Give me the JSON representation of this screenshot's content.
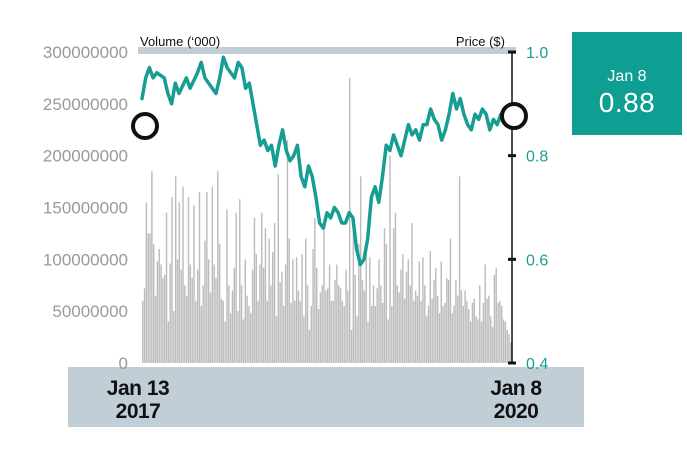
{
  "chart_data": {
    "type": "bar+line",
    "title": "",
    "left_axis": {
      "title": "Volume (‘000)",
      "ticks": [
        0,
        50000000,
        100000000,
        150000000,
        200000000,
        250000000,
        300000000
      ],
      "tick_labels": [
        "0",
        "50000000",
        "100000000",
        "150000000",
        "200000000",
        "250000000",
        "300000000"
      ],
      "range": [
        0,
        300000000
      ]
    },
    "right_axis": {
      "title": "Price ($)",
      "ticks": [
        0.4,
        0.6,
        0.8,
        1.0
      ],
      "tick_labels": [
        "0.4",
        "0.6",
        "0.8",
        "1.0"
      ],
      "range": [
        0.4,
        1.0
      ]
    },
    "x_range": [
      "Jan 13 2017",
      "Jan 8 2020"
    ],
    "start_label": {
      "month_day": "Jan 13",
      "year": "2017"
    },
    "end_label": {
      "month_day": "Jan 8",
      "year": "2020"
    },
    "series": [
      {
        "name": "Volume",
        "kind": "bar",
        "color": "#bcbcbc",
        "values": [
          60000000,
          72000000,
          155000000,
          125000000,
          125000000,
          185000000,
          115000000,
          65000000,
          98000000,
          110000000,
          95000000,
          82000000,
          85000000,
          145000000,
          40000000,
          96000000,
          160000000,
          50000000,
          180000000,
          100000000,
          155000000,
          90000000,
          170000000,
          75000000,
          65000000,
          160000000,
          95000000,
          82000000,
          152000000,
          60000000,
          90000000,
          165000000,
          55000000,
          75000000,
          118000000,
          165000000,
          100000000,
          68000000,
          170000000,
          95000000,
          82000000,
          185000000,
          115000000,
          62000000,
          60000000,
          40000000,
          148000000,
          75000000,
          48000000,
          70000000,
          92000000,
          145000000,
          50000000,
          158000000,
          75000000,
          42000000,
          100000000,
          65000000,
          55000000,
          48000000,
          90000000,
          140000000,
          105000000,
          60000000,
          95000000,
          145000000,
          92000000,
          130000000,
          60000000,
          120000000,
          75000000,
          107000000,
          135000000,
          45000000,
          182000000,
          78000000,
          88000000,
          55000000,
          95000000,
          215000000,
          120000000,
          58000000,
          100000000,
          60000000,
          102000000,
          70000000,
          60000000,
          105000000,
          45000000,
          120000000,
          75000000,
          32000000,
          55000000,
          110000000,
          140000000,
          92000000,
          52000000,
          68000000,
          75000000,
          128000000,
          70000000,
          72000000,
          95000000,
          60000000,
          60000000,
          80000000,
          95000000,
          75000000,
          72000000,
          60000000,
          55000000,
          90000000,
          70000000,
          275000000,
          32000000,
          128000000,
          85000000,
          45000000,
          115000000,
          180000000,
          80000000,
          70000000,
          108000000,
          40000000,
          102000000,
          55000000,
          75000000,
          55000000,
          72000000,
          100000000,
          75000000,
          58000000,
          130000000,
          115000000,
          42000000,
          200000000,
          55000000,
          130000000,
          145000000,
          75000000,
          68000000,
          90000000,
          105000000,
          62000000,
          88000000,
          100000000,
          75000000,
          135000000,
          60000000,
          70000000,
          65000000,
          98000000,
          60000000,
          102000000,
          75000000,
          45000000,
          55000000,
          108000000,
          62000000,
          80000000,
          92000000,
          65000000,
          48000000,
          98000000,
          55000000,
          58000000,
          82000000,
          80000000,
          120000000,
          48000000,
          55000000,
          80000000,
          65000000,
          180000000,
          70000000,
          55000000,
          70000000,
          60000000,
          52000000,
          40000000,
          58000000,
          62000000,
          45000000,
          42000000,
          75000000,
          40000000,
          58000000,
          95000000,
          62000000,
          65000000,
          45000000,
          35000000,
          85000000,
          92000000,
          58000000,
          60000000,
          55000000,
          42000000,
          40000000,
          32000000,
          28000000,
          20000000
        ]
      },
      {
        "name": "Price",
        "kind": "line",
        "color": "#179e92",
        "points": [
          [
            0.0,
            0.91
          ],
          [
            0.01,
            0.95
          ],
          [
            0.02,
            0.97
          ],
          [
            0.03,
            0.95
          ],
          [
            0.04,
            0.96
          ],
          [
            0.06,
            0.95
          ],
          [
            0.07,
            0.92
          ],
          [
            0.08,
            0.9
          ],
          [
            0.09,
            0.94
          ],
          [
            0.1,
            0.92
          ],
          [
            0.12,
            0.95
          ],
          [
            0.13,
            0.93
          ],
          [
            0.15,
            0.96
          ],
          [
            0.16,
            0.98
          ],
          [
            0.17,
            0.95
          ],
          [
            0.18,
            0.94
          ],
          [
            0.2,
            0.92
          ],
          [
            0.21,
            0.95
          ],
          [
            0.22,
            0.99
          ],
          [
            0.23,
            0.97
          ],
          [
            0.25,
            0.95
          ],
          [
            0.26,
            0.98
          ],
          [
            0.27,
            0.97
          ],
          [
            0.28,
            0.93
          ],
          [
            0.29,
            0.94
          ],
          [
            0.3,
            0.9
          ],
          [
            0.31,
            0.86
          ],
          [
            0.32,
            0.82
          ],
          [
            0.33,
            0.83
          ],
          [
            0.34,
            0.81
          ],
          [
            0.35,
            0.82
          ],
          [
            0.36,
            0.78
          ],
          [
            0.37,
            0.82
          ],
          [
            0.38,
            0.85
          ],
          [
            0.39,
            0.81
          ],
          [
            0.4,
            0.79
          ],
          [
            0.41,
            0.8
          ],
          [
            0.42,
            0.82
          ],
          [
            0.43,
            0.76
          ],
          [
            0.44,
            0.74
          ],
          [
            0.45,
            0.78
          ],
          [
            0.46,
            0.76
          ],
          [
            0.47,
            0.72
          ],
          [
            0.48,
            0.67
          ],
          [
            0.49,
            0.66
          ],
          [
            0.5,
            0.69
          ],
          [
            0.51,
            0.68
          ],
          [
            0.52,
            0.7
          ],
          [
            0.53,
            0.69
          ],
          [
            0.54,
            0.67
          ],
          [
            0.55,
            0.67
          ],
          [
            0.56,
            0.69
          ],
          [
            0.57,
            0.68
          ],
          [
            0.58,
            0.62
          ],
          [
            0.59,
            0.59
          ],
          [
            0.6,
            0.6
          ],
          [
            0.61,
            0.64
          ],
          [
            0.62,
            0.72
          ],
          [
            0.63,
            0.74
          ],
          [
            0.64,
            0.71
          ],
          [
            0.65,
            0.76
          ],
          [
            0.66,
            0.82
          ],
          [
            0.67,
            0.81
          ],
          [
            0.68,
            0.84
          ],
          [
            0.69,
            0.82
          ],
          [
            0.7,
            0.8
          ],
          [
            0.71,
            0.83
          ],
          [
            0.72,
            0.86
          ],
          [
            0.73,
            0.84
          ],
          [
            0.74,
            0.85
          ],
          [
            0.75,
            0.83
          ],
          [
            0.76,
            0.86
          ],
          [
            0.77,
            0.86
          ],
          [
            0.78,
            0.89
          ],
          [
            0.79,
            0.87
          ],
          [
            0.8,
            0.86
          ],
          [
            0.81,
            0.83
          ],
          [
            0.82,
            0.85
          ],
          [
            0.83,
            0.88
          ],
          [
            0.84,
            0.92
          ],
          [
            0.85,
            0.89
          ],
          [
            0.86,
            0.91
          ],
          [
            0.87,
            0.88
          ],
          [
            0.88,
            0.86
          ],
          [
            0.89,
            0.85
          ],
          [
            0.9,
            0.88
          ],
          [
            0.91,
            0.87
          ],
          [
            0.92,
            0.89
          ],
          [
            0.93,
            0.88
          ],
          [
            0.94,
            0.85
          ],
          [
            0.95,
            0.87
          ],
          [
            0.96,
            0.86
          ],
          [
            0.97,
            0.88
          ],
          [
            0.98,
            0.87
          ],
          [
            1.0,
            0.88
          ]
        ]
      }
    ],
    "start_price": 0.88,
    "callout": {
      "date": "Jan 8",
      "value": "0.88"
    },
    "colors": {
      "volume": "#bcbcbc",
      "price": "#179e92",
      "callout_bg": "#0e9f92",
      "date_band": "#c1ced6",
      "header_band": "#c1ced6",
      "marker": "#111111"
    }
  }
}
